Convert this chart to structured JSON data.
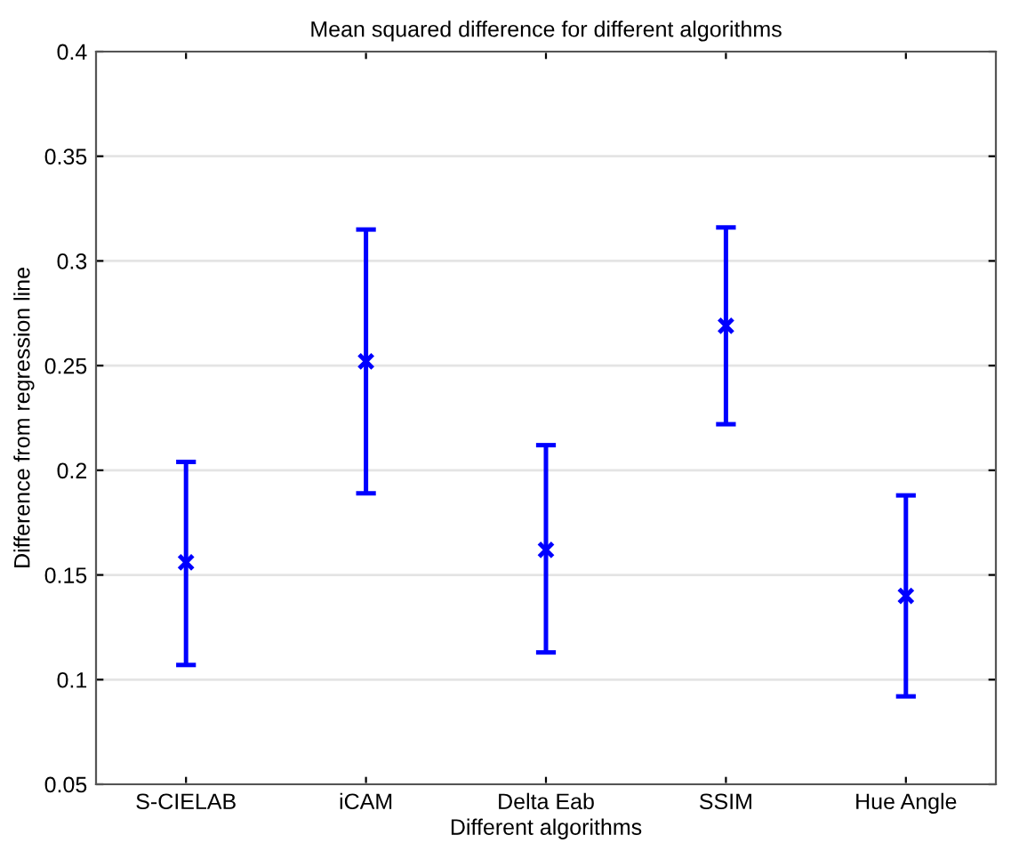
{
  "chart_data": {
    "type": "scatter",
    "title": "Mean squared difference for different algorithms",
    "xlabel": "Different algorithms",
    "ylabel": "Difference from regression line",
    "categories": [
      "S-CIELAB",
      "iCAM",
      "Delta Eab",
      "SSIM",
      "Hue Angle"
    ],
    "values": [
      0.156,
      0.252,
      0.162,
      0.269,
      0.14
    ],
    "errors": [
      [
        0.107,
        0.204
      ],
      [
        0.189,
        0.315
      ],
      [
        0.113,
        0.212
      ],
      [
        0.222,
        0.316
      ],
      [
        0.092,
        0.188
      ]
    ],
    "color": "#0000ff",
    "marker": "cross",
    "ylim": [
      0.05,
      0.4
    ],
    "yticks": [
      0.05,
      0.1,
      0.15,
      0.2,
      0.25,
      0.3,
      0.35,
      0.4
    ],
    "grid": "y"
  }
}
